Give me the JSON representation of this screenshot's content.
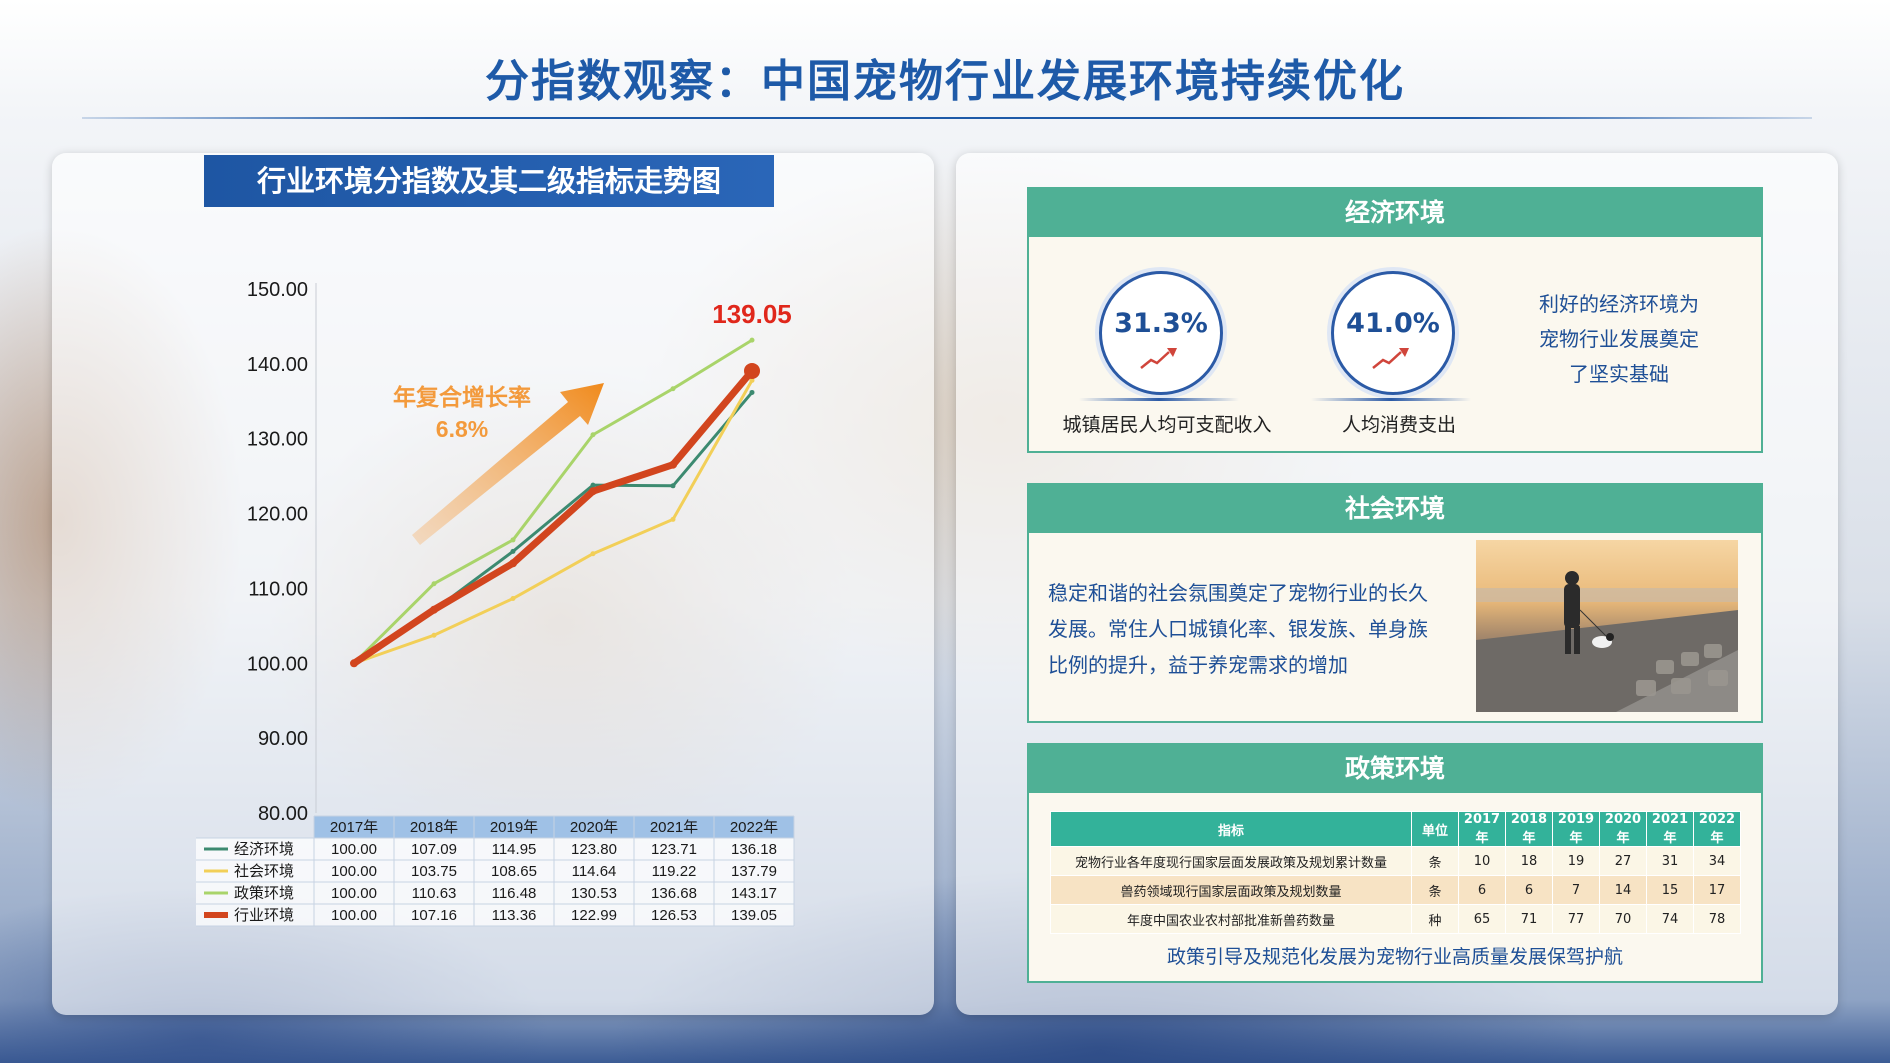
{
  "page": {
    "title": "分指数观察：中国宠物行业发展环境持续优化"
  },
  "chart_data": {
    "type": "line",
    "title": "行业环境分指数及其二级指标走势图",
    "categories": [
      "2017年",
      "2018年",
      "2019年",
      "2020年",
      "2021年",
      "2022年"
    ],
    "ylim": [
      80,
      150
    ],
    "yticks": [
      "150.00",
      "140.00",
      "130.00",
      "120.00",
      "110.00",
      "100.00",
      "90.00",
      "80.00"
    ],
    "series": [
      {
        "name": "经济环境",
        "values": [
          100.0,
          107.09,
          114.95,
          123.8,
          123.71,
          136.18
        ],
        "values_text": [
          "100.00",
          "107.09",
          "114.95",
          "123.80",
          "123.71",
          "136.18"
        ],
        "color": "#3c8a70"
      },
      {
        "name": "社会环境",
        "values": [
          100.0,
          103.75,
          108.65,
          114.64,
          119.22,
          137.79
        ],
        "values_text": [
          "100.00",
          "103.75",
          "108.65",
          "114.64",
          "119.22",
          "137.79"
        ],
        "color": "#f2cf58"
      },
      {
        "name": "政策环境",
        "values": [
          100.0,
          110.63,
          116.48,
          130.53,
          136.68,
          143.17
        ],
        "values_text": [
          "100.00",
          "110.63",
          "116.48",
          "130.53",
          "136.68",
          "143.17"
        ],
        "color": "#a9d46a"
      },
      {
        "name": "行业环境",
        "values": [
          100.0,
          107.16,
          113.36,
          122.99,
          126.53,
          139.05
        ],
        "values_text": [
          "100.00",
          "107.16",
          "113.36",
          "122.99",
          "126.53",
          "139.05"
        ],
        "color": "#d2451e"
      }
    ],
    "end_label": "139.05",
    "annotation": {
      "line1": "年复合增长率",
      "line2": "6.8%",
      "color": "#f39a3c"
    }
  },
  "economic": {
    "header": "经济环境",
    "items": [
      {
        "value": "31.3%",
        "label": "城镇居民人均可支配收入"
      },
      {
        "value": "41.0%",
        "label": "人均消费支出"
      }
    ],
    "text": [
      "利好的经济环境为",
      "宠物行业发展奠定",
      "了坚实基础"
    ]
  },
  "social": {
    "header": "社会环境",
    "text": [
      "稳定和谐的社会氛围奠定了宠物行业的长久",
      "发展。常住人口城镇化率、银发族、单身族",
      "比例的提升，益于养宠需求的增加"
    ]
  },
  "policy": {
    "header": "政策环境",
    "columns": [
      "指标",
      "单位",
      "2017年",
      "2018年",
      "2019年",
      "2020年",
      "2021年",
      "2022年"
    ],
    "rows": [
      [
        "宠物行业各年度现行国家层面发展政策及规划累计数量",
        "条",
        "10",
        "18",
        "19",
        "27",
        "31",
        "34"
      ],
      [
        "兽药领域现行国家层面政策及规划数量",
        "条",
        "6",
        "6",
        "7",
        "14",
        "15",
        "17"
      ],
      [
        "年度中国农业农村部批准新兽药数量",
        "种",
        "65",
        "71",
        "77",
        "70",
        "74",
        "78"
      ]
    ],
    "caption": "政策引导及规范化发展为宠物行业高质量发展保驾护航"
  }
}
